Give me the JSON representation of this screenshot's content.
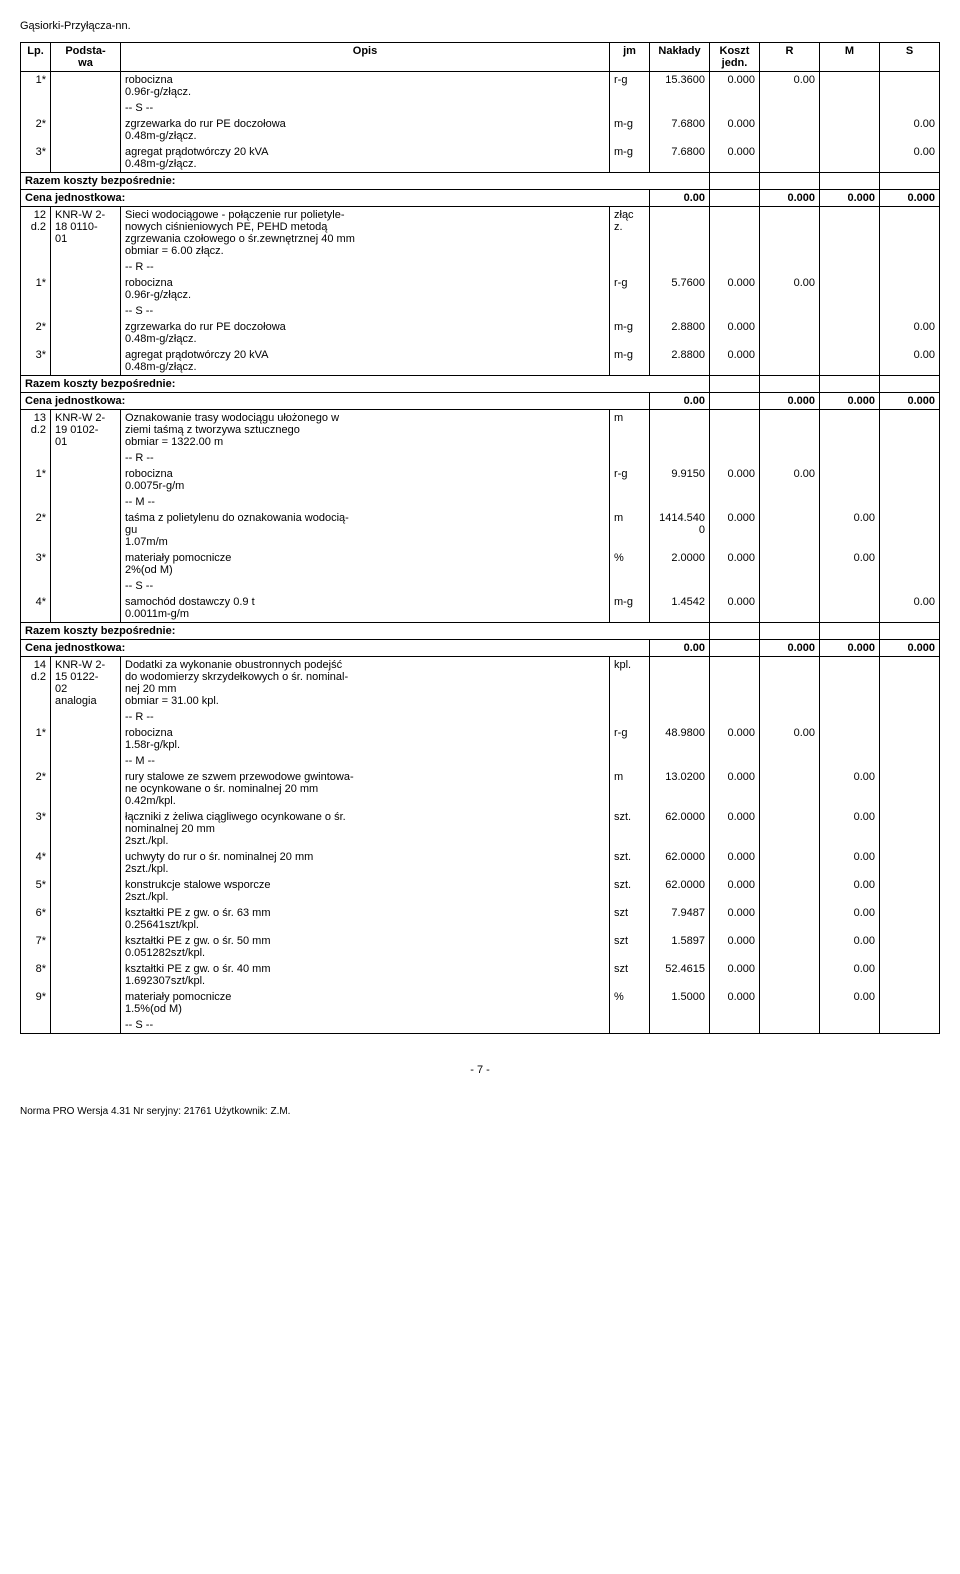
{
  "doc_title": "Gąsiorki-Przyłącza-nn.",
  "columns": {
    "lp": "Lp.",
    "podstawa": "Podsta-\nwa",
    "opis": "Opis",
    "jm": "jm",
    "naklady": "Nakłady",
    "koszt": "Koszt\njedn.",
    "r": "R",
    "m": "M",
    "s": "S"
  },
  "row1": {
    "lp": "1*",
    "opis": "robocizna\n0.96r-g/złącz.",
    "jm": "r-g",
    "naklady": "15.3600",
    "koszt": "0.000",
    "r": "0.00"
  },
  "row2": {
    "lp": "2*",
    "opis_s": "-- S --",
    "opis": "zgrzewarka do rur PE doczołowa\n0.48m-g/złącz.",
    "jm": "m-g",
    "naklady": "7.6800",
    "koszt": "0.000",
    "s": "0.00"
  },
  "row3": {
    "lp": "3*",
    "opis": "agregat prądotwórczy 20 kVA\n0.48m-g/złącz.",
    "jm": "m-g",
    "naklady": "7.6800",
    "koszt": "0.000",
    "s": "0.00"
  },
  "razem1": {
    "label": "Razem koszty bezpośrednie:",
    "cena": "Cena jednostkowa:",
    "val": "0.00",
    "r": "0.000",
    "m": "0.000",
    "s": "0.000"
  },
  "section12": {
    "lp": "12\nd.2",
    "podstawa": "KNR-W 2-\n18 0110-\n01",
    "opis": "Sieci wodociągowe - połączenie rur polietyle-\nnowych ciśnieniowych PE, PEHD metodą\nzgrzewania czołowego o śr.zewnętrznej 40 mm\nobmiar  =  6.00 złącz.",
    "jm": "złąc\nz."
  },
  "s12_r1": {
    "lp": "1*",
    "opis_r": "-- R --",
    "opis": "robocizna\n0.96r-g/złącz.",
    "jm": "r-g",
    "naklady": "5.7600",
    "koszt": "0.000",
    "r": "0.00"
  },
  "s12_r2": {
    "lp": "2*",
    "opis_s": "-- S --",
    "opis": "zgrzewarka do rur PE doczołowa\n0.48m-g/złącz.",
    "jm": "m-g",
    "naklady": "2.8800",
    "koszt": "0.000",
    "s": "0.00"
  },
  "s12_r3": {
    "lp": "3*",
    "opis": "agregat prądotwórczy 20 kVA\n0.48m-g/złącz.",
    "jm": "m-g",
    "naklady": "2.8800",
    "koszt": "0.000",
    "s": "0.00"
  },
  "razem2": {
    "label": "Razem koszty bezpośrednie:",
    "cena": "Cena jednostkowa:",
    "val": "0.00",
    "r": "0.000",
    "m": "0.000",
    "s": "0.000"
  },
  "section13": {
    "lp": "13\nd.2",
    "podstawa": "KNR-W 2-\n19 0102-\n01",
    "opis": "Oznakowanie trasy wodociągu ułożonego w\nziemi taśmą z tworzywa sztucznego\nobmiar  =  1322.00 m",
    "jm": "m"
  },
  "s13_r1": {
    "lp": "1*",
    "opis_r": "-- R --",
    "opis": "robocizna\n0.0075r-g/m",
    "jm": "r-g",
    "naklady": "9.9150",
    "koszt": "0.000",
    "r": "0.00"
  },
  "s13_r2": {
    "lp": "2*",
    "opis_m": "-- M --",
    "opis": "taśma z polietylenu do oznakowania wodocią-\ngu\n1.07m/m",
    "jm": "m",
    "naklady": "1414.5400",
    "koszt": "0.000",
    "m": "0.00"
  },
  "s13_r3": {
    "lp": "3*",
    "opis": "materiały pomocnicze\n2%(od M)",
    "jm": "%",
    "naklady": "2.0000",
    "koszt": "0.000",
    "m": "0.00"
  },
  "s13_r4": {
    "lp": "4*",
    "opis_s": "-- S --",
    "opis": "samochód dostawczy 0.9 t\n0.0011m-g/m",
    "jm": "m-g",
    "naklady": "1.4542",
    "koszt": "0.000",
    "s": "0.00"
  },
  "razem3": {
    "label": "Razem koszty bezpośrednie:",
    "cena": "Cena jednostkowa:",
    "val": "0.00",
    "r": "0.000",
    "m": "0.000",
    "s": "0.000"
  },
  "section14": {
    "lp": "14\nd.2",
    "podstawa": "KNR-W 2-\n15 0122-\n02\nanalogia",
    "opis": "Dodatki za wykonanie obustronnych podejść\ndo wodomierzy skrzydełkowych o śr. nominal-\nnej 20 mm\nobmiar  =  31.00 kpl.",
    "jm": "kpl."
  },
  "s14_r1": {
    "lp": "1*",
    "opis_r": "-- R --",
    "opis": "robocizna\n1.58r-g/kpl.",
    "jm": "r-g",
    "naklady": "48.9800",
    "koszt": "0.000",
    "r": "0.00"
  },
  "s14_r2": {
    "lp": "2*",
    "opis_m": "-- M --",
    "opis": "rury stalowe ze szwem przewodowe gwintowa-\nne ocynkowane o śr. nominalnej 20 mm\n0.42m/kpl.",
    "jm": "m",
    "naklady": "13.0200",
    "koszt": "0.000",
    "m": "0.00"
  },
  "s14_r3": {
    "lp": "3*",
    "opis": "łączniki z żeliwa ciągliwego ocynkowane o śr.\nnominalnej 20 mm\n2szt./kpl.",
    "jm": "szt.",
    "naklady": "62.0000",
    "koszt": "0.000",
    "m": "0.00"
  },
  "s14_r4": {
    "lp": "4*",
    "opis": "uchwyty do rur o śr. nominalnej 20 mm\n2szt./kpl.",
    "jm": "szt.",
    "naklady": "62.0000",
    "koszt": "0.000",
    "m": "0.00"
  },
  "s14_r5": {
    "lp": "5*",
    "opis": "konstrukcje stalowe wsporcze\n2szt./kpl.",
    "jm": "szt.",
    "naklady": "62.0000",
    "koszt": "0.000",
    "m": "0.00"
  },
  "s14_r6": {
    "lp": "6*",
    "opis": "kształtki PE z gw. o śr. 63 mm\n0.25641szt/kpl.",
    "jm": "szt",
    "naklady": "7.9487",
    "koszt": "0.000",
    "m": "0.00"
  },
  "s14_r7": {
    "lp": "7*",
    "opis": "kształtki PE z gw. o śr. 50 mm\n0.051282szt/kpl.",
    "jm": "szt",
    "naklady": "1.5897",
    "koszt": "0.000",
    "m": "0.00"
  },
  "s14_r8": {
    "lp": "8*",
    "opis": "kształtki PE z gw. o śr. 40 mm\n1.692307szt/kpl.",
    "jm": "szt",
    "naklady": "52.4615",
    "koszt": "0.000",
    "m": "0.00"
  },
  "s14_r9": {
    "lp": "9*",
    "opis": "materiały pomocnicze\n1.5%(od M)",
    "jm": "%",
    "naklady": "1.5000",
    "koszt": "0.000",
    "m": "0.00"
  },
  "s14_end": "-- S --",
  "page_number": "- 7 -",
  "footer_text": "Norma PRO Wersja 4.31 Nr seryjny: 21761 Użytkownik: Z.M."
}
